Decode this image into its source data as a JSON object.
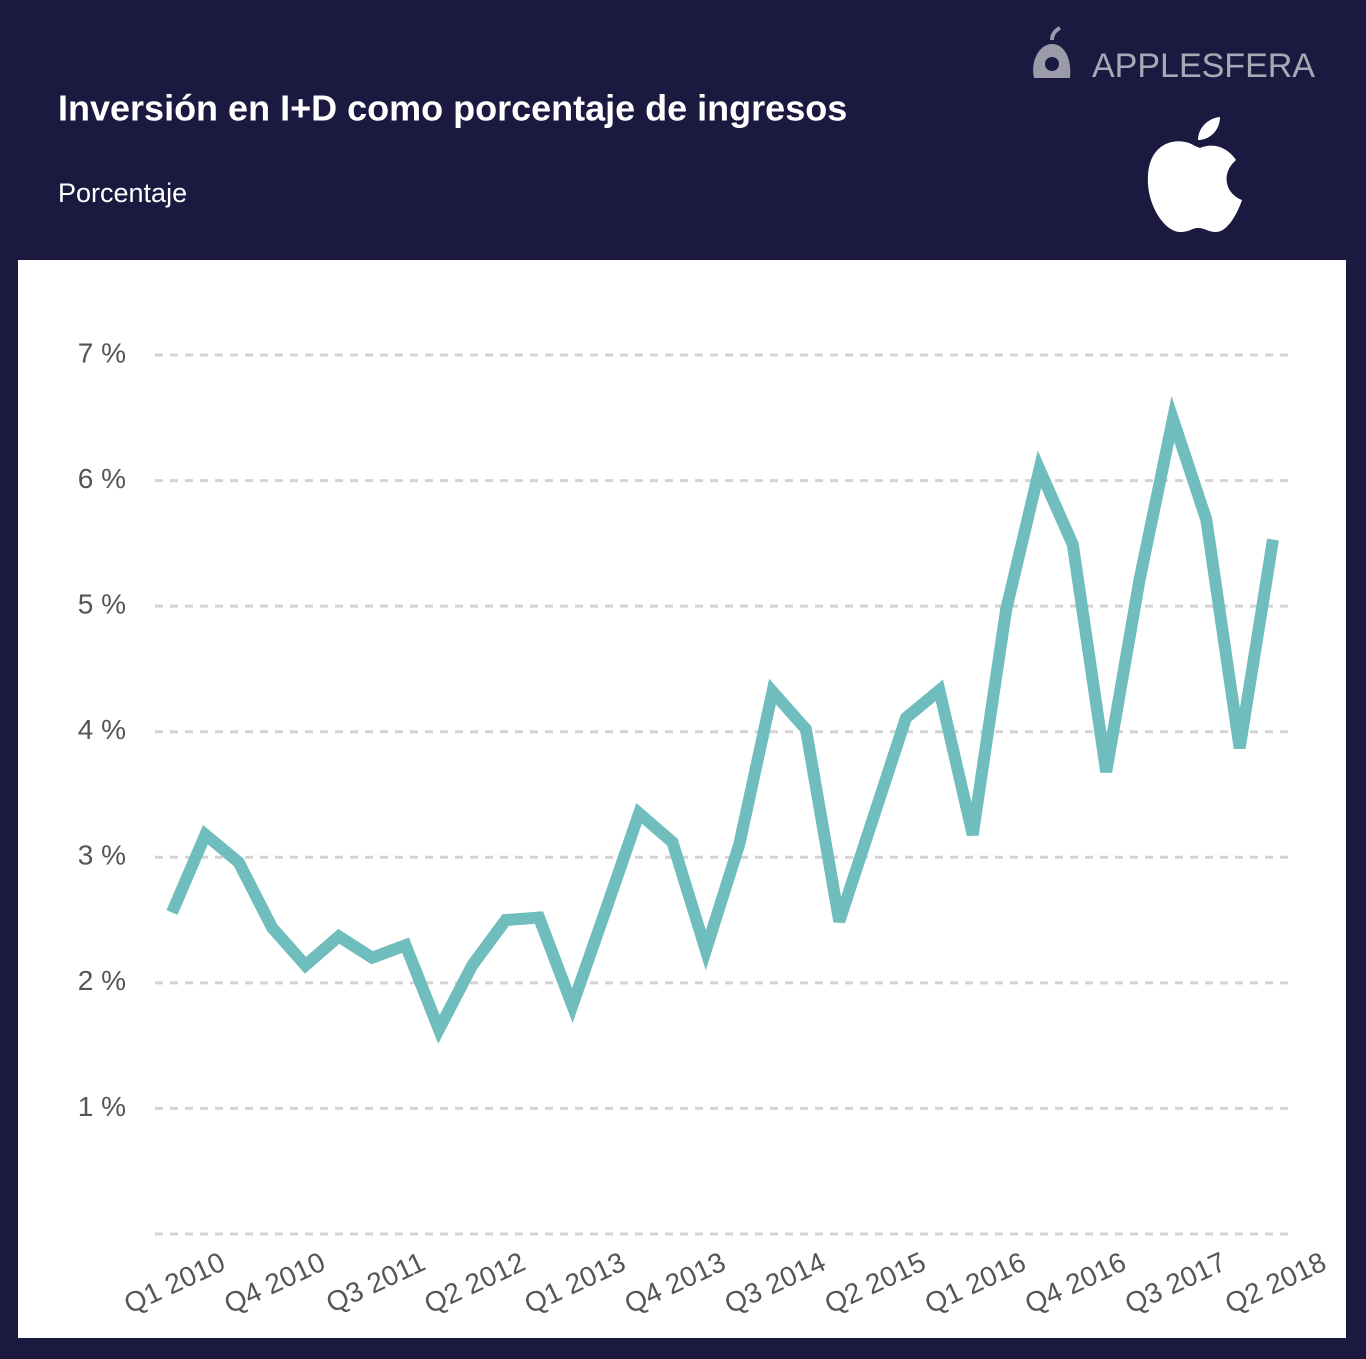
{
  "brand": "APPLESFERA",
  "chart_data": {
    "type": "line",
    "title": "Inversión en I+D como porcentaje de ingresos",
    "subtitle": "Porcentaje",
    "categories": [
      "Q1 2010",
      null,
      null,
      "Q4 2010",
      null,
      null,
      "Q3 2011",
      null,
      null,
      "Q2 2012",
      null,
      null,
      "Q1 2013",
      null,
      null,
      "Q4 2013",
      null,
      null,
      "Q3 2014",
      null,
      null,
      "Q2 2015",
      null,
      null,
      "Q1 2016",
      null,
      null,
      "Q4 2016",
      null,
      null,
      "Q3 2017",
      null,
      null,
      "Q2 2018"
    ],
    "series": [
      {
        "color": "#6fbdbd",
        "values": [
          2.56,
          3.18,
          2.96,
          2.44,
          2.14,
          2.37,
          2.2,
          2.3,
          1.63,
          2.14,
          2.5,
          2.52,
          1.82,
          2.58,
          3.35,
          3.12,
          2.26,
          3.1,
          4.32,
          4.02,
          2.49,
          3.3,
          4.11,
          4.33,
          3.18,
          4.97,
          6.09,
          5.49,
          3.68,
          5.21,
          6.49,
          5.69,
          3.87,
          5.53
        ]
      }
    ],
    "ylim": [
      0,
      7
    ],
    "yticks": [
      {
        "value": 1,
        "label": "1 %"
      },
      {
        "value": 2,
        "label": "2 %"
      },
      {
        "value": 3,
        "label": "3 %"
      },
      {
        "value": 4,
        "label": "4 %"
      },
      {
        "value": 5,
        "label": "5 %"
      },
      {
        "value": 6,
        "label": "6 %"
      },
      {
        "value": 7,
        "label": "7 %"
      }
    ],
    "grid": true
  }
}
